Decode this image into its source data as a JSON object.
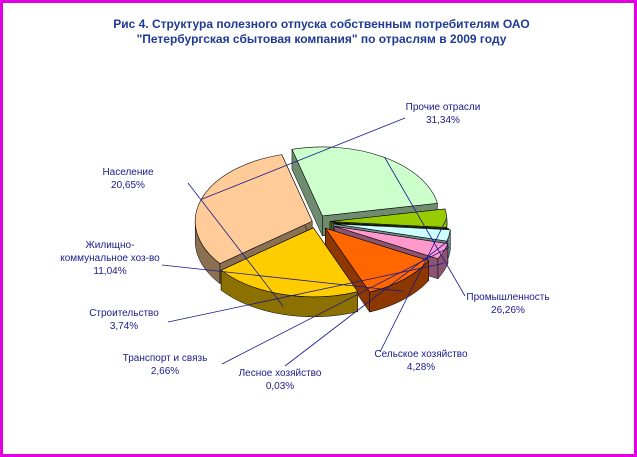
{
  "title_lines": [
    "Рис 4. Структура полезного отпуска собственным потребителям ОАО",
    "\"Петербургская сбытовая компания\" по отраслям в 2009 году"
  ],
  "chart_data": {
    "type": "pie",
    "title": "Рис 4. Структура полезного отпуска собственным потребителям ОАО \"Петербургская сбытовая компания\" по отраслям в 2009 году",
    "legend": "none",
    "slices": [
      {
        "label_lines": [
          "Прочие отрасли"
        ],
        "value_text": "31,34%",
        "value": 31.34,
        "color": "#FFCC99"
      },
      {
        "label_lines": [
          "Промышленность"
        ],
        "value_text": "26,26%",
        "value": 26.26,
        "color": "#CCFFCC"
      },
      {
        "label_lines": [
          "Сельское хозяйство"
        ],
        "value_text": "4,28%",
        "value": 4.28,
        "color": "#99CC00"
      },
      {
        "label_lines": [
          "Лесное хозяйство"
        ],
        "value_text": "0,03%",
        "value": 0.03,
        "color": "#C0C0C0"
      },
      {
        "label_lines": [
          "Транспорт и связь"
        ],
        "value_text": "2,66%",
        "value": 2.66,
        "color": "#CCFFFF"
      },
      {
        "label_lines": [
          "Строительство"
        ],
        "value_text": "3,74%",
        "value": 3.74,
        "color": "#FF99CC"
      },
      {
        "label_lines": [
          "Жилищно-",
          "коммунальное хоз-во"
        ],
        "value_text": "11,04%",
        "value": 11.04,
        "color": "#FF6600"
      },
      {
        "label_lines": [
          "Население"
        ],
        "value_text": "20,65%",
        "value": 20.65,
        "color": "#FFCC00"
      }
    ]
  }
}
